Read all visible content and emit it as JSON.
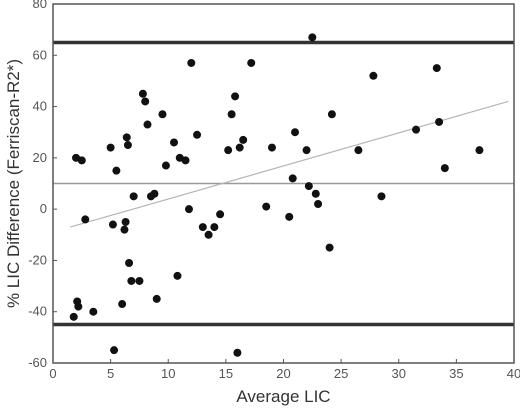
{
  "chart_data": {
    "type": "scatter",
    "xlabel": "Average LIC",
    "ylabel": "% LIC Difference (Ferriscan-R2*)",
    "xlim": [
      0,
      40
    ],
    "ylim": [
      -60,
      80
    ],
    "xticks": [
      0,
      5,
      10,
      15,
      20,
      25,
      30,
      35,
      40
    ],
    "yticks": [
      -60,
      -40,
      -20,
      0,
      20,
      40,
      60,
      80
    ],
    "grid": false,
    "reference_lines": [
      {
        "kind": "upper limit of agreement",
        "y": 65
      },
      {
        "kind": "mean difference",
        "y": 10
      },
      {
        "kind": "lower limit of agreement",
        "y": -45
      }
    ],
    "regression_line": {
      "x": [
        1.5,
        39.5
      ],
      "y": [
        -7,
        42
      ]
    },
    "points": {
      "x": [
        1.8,
        2.0,
        2.1,
        2.2,
        2.5,
        2.8,
        3.5,
        5.0,
        5.2,
        5.3,
        5.5,
        6.0,
        6.2,
        6.3,
        6.4,
        6.5,
        6.6,
        6.8,
        7.0,
        7.5,
        7.8,
        8.0,
        8.2,
        8.5,
        8.8,
        9.0,
        9.5,
        9.8,
        10.5,
        10.8,
        11.0,
        11.5,
        11.8,
        12.0,
        12.5,
        13.0,
        13.5,
        14.0,
        14.5,
        15.2,
        15.5,
        15.8,
        16.0,
        16.2,
        16.5,
        17.2,
        18.5,
        19.0,
        20.5,
        20.8,
        21.0,
        22.0,
        22.2,
        22.5,
        22.8,
        23.0,
        24.0,
        24.2,
        26.5,
        27.8,
        28.5,
        31.5,
        33.3,
        33.5,
        34.0,
        37.0
      ],
      "y": [
        -42,
        20,
        -36,
        -38,
        19,
        -4,
        -40,
        24,
        -6,
        -55,
        15,
        -37,
        -8,
        -5,
        28,
        25,
        -21,
        -28,
        5,
        -28,
        45,
        42,
        33,
        5,
        6,
        -35,
        37,
        17,
        26,
        -26,
        20,
        19,
        0,
        57,
        29,
        -7,
        -10,
        -7,
        -2,
        23,
        37,
        44,
        -56,
        24,
        27,
        57,
        1,
        24,
        -3,
        12,
        30,
        23,
        9,
        67,
        6,
        2,
        -15,
        37,
        23,
        52,
        5,
        31,
        55,
        34,
        16,
        23
      ]
    }
  }
}
